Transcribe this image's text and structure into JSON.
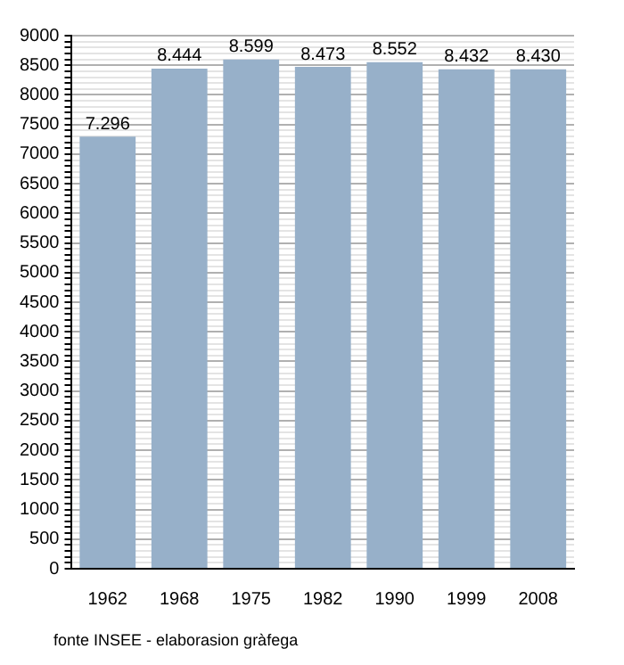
{
  "chart_data": {
    "type": "bar",
    "categories": [
      "1962",
      "1968",
      "1975",
      "1982",
      "1990",
      "1999",
      "2008"
    ],
    "values": [
      7296,
      8444,
      8599,
      8473,
      8552,
      8432,
      8430
    ],
    "value_labels": [
      "7.296",
      "8.444",
      "8.599",
      "8.473",
      "8.552",
      "8.432",
      "8.430"
    ],
    "color": "#97b0c9",
    "ylim": [
      0,
      9000
    ],
    "yticks": [
      0,
      {
        "value": 100,
        "label": null
      },
      {
        "value": 200,
        "label": null
      },
      {
        "value": 300,
        "label": null
      },
      {
        "value": 400,
        "label": null
      },
      500,
      {
        "value": 600,
        "label": null
      },
      {
        "value": 700,
        "label": null
      },
      {
        "value": 800,
        "label": null
      },
      {
        "value": 900,
        "label": null
      },
      1000,
      {
        "value": 1100,
        "label": null
      },
      {
        "value": 1200,
        "label": null
      },
      {
        "value": 1300,
        "label": null
      },
      {
        "value": 1400,
        "label": null
      },
      1500,
      {
        "value": 1600,
        "label": null
      },
      {
        "value": 1700,
        "label": null
      },
      {
        "value": 1800,
        "label": null
      },
      {
        "value": 1900,
        "label": null
      },
      2000,
      {
        "value": 2100,
        "label": null
      },
      {
        "value": 2200,
        "label": null
      },
      {
        "value": 2300,
        "label": null
      },
      {
        "value": 2400,
        "label": null
      },
      2500,
      {
        "value": 2600,
        "label": null
      },
      {
        "value": 2700,
        "label": null
      },
      {
        "value": 2800,
        "label": null
      },
      {
        "value": 2900,
        "label": null
      },
      3000,
      {
        "value": 3100,
        "label": null
      },
      {
        "value": 3200,
        "label": null
      },
      {
        "value": 3300,
        "label": null
      },
      {
        "value": 3400,
        "label": null
      },
      3500,
      {
        "value": 3600,
        "label": null
      },
      {
        "value": 3700,
        "label": null
      },
      {
        "value": 3800,
        "label": null
      },
      {
        "value": 3900,
        "label": null
      },
      4000,
      {
        "value": 4100,
        "label": null
      },
      {
        "value": 4200,
        "label": null
      },
      {
        "value": 4300,
        "label": null
      },
      {
        "value": 4400,
        "label": null
      },
      4500,
      {
        "value": 4600,
        "label": null
      },
      {
        "value": 4700,
        "label": null
      },
      {
        "value": 4800,
        "label": null
      },
      {
        "value": 4900,
        "label": null
      },
      5000,
      {
        "value": 5100,
        "label": null
      },
      {
        "value": 5200,
        "label": null
      },
      {
        "value": 5300,
        "label": null
      },
      {
        "value": 5400,
        "label": null
      },
      5500,
      {
        "value": 5600,
        "label": null
      },
      {
        "value": 5700,
        "label": null
      },
      {
        "value": 5800,
        "label": null
      },
      {
        "value": 5900,
        "label": null
      },
      6000,
      {
        "value": 6100,
        "label": null
      },
      {
        "value": 6200,
        "label": null
      },
      {
        "value": 6300,
        "label": null
      },
      {
        "value": 6400,
        "label": null
      },
      6500,
      {
        "value": 6600,
        "label": null
      },
      {
        "value": 6700,
        "label": null
      },
      {
        "value": 6800,
        "label": null
      },
      {
        "value": 6900,
        "label": null
      },
      7000,
      {
        "value": 7100,
        "label": null
      },
      {
        "value": 7200,
        "label": null
      },
      {
        "value": 7300,
        "label": null
      },
      {
        "value": 7400,
        "label": null
      },
      7500,
      {
        "value": 7600,
        "label": null
      },
      {
        "value": 7700,
        "label": null
      },
      {
        "value": 7800,
        "label": null
      },
      {
        "value": 7900,
        "label": null
      },
      8000,
      {
        "value": 8100,
        "label": null
      },
      {
        "value": 8200,
        "label": null
      },
      {
        "value": 8300,
        "label": null
      },
      {
        "value": 8400,
        "label": null
      },
      8500,
      {
        "value": 8600,
        "label": null
      },
      {
        "value": 8700,
        "label": null
      },
      {
        "value": 8800,
        "label": null
      },
      {
        "value": 8900,
        "label": null
      },
      9000
    ],
    "grid": "y",
    "annotations": [
      "fonte INSEE - elaborasion gràfega"
    ]
  }
}
